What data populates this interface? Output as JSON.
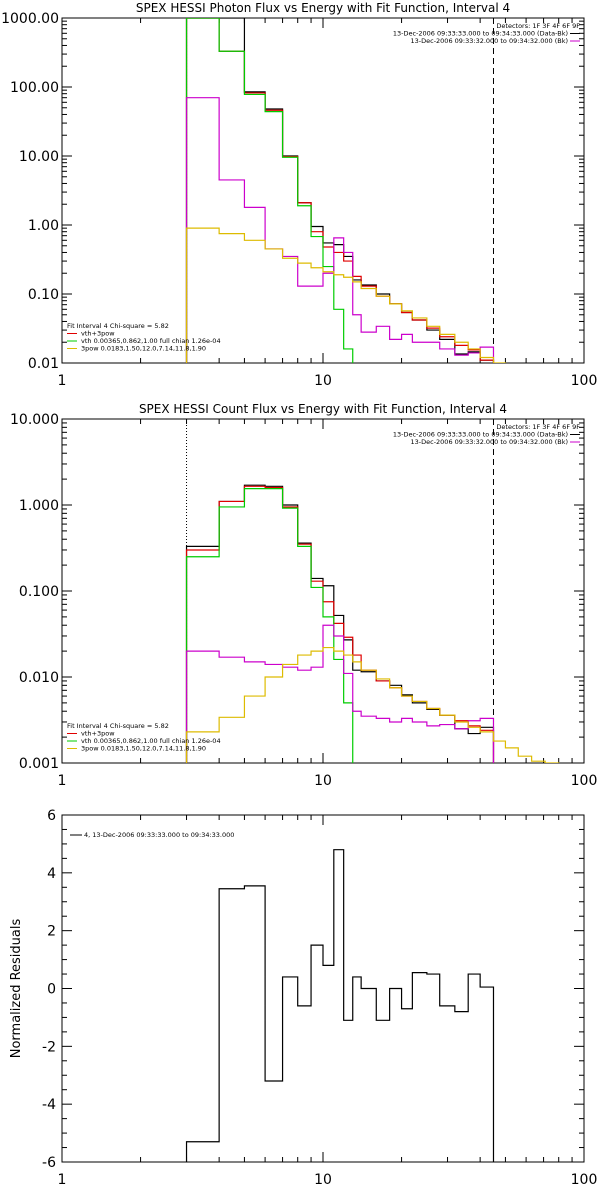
{
  "chart_data": [
    {
      "type": "line",
      "title": "SPEX HESSI Photon Flux vs Energy with Fit Function, Interval 4",
      "x_scale": "log",
      "y_scale": "log",
      "xlim": [
        1,
        100
      ],
      "ylim": [
        0.01,
        1000
      ],
      "x_ticks": [
        "1",
        "10",
        "100"
      ],
      "y_ticks": [
        "0.01",
        "0.10",
        "1.00",
        "10.00",
        "100.00",
        "1000.00"
      ],
      "info_lines": [
        {
          "text": "Detectors: 1F 3F 4F 6F 9F",
          "swatch": ""
        },
        {
          "text": "13-Dec-2006 09:33:33.000 to 09:34:33.000 (Data-Bk)",
          "swatch": "#000000"
        },
        {
          "text": "13-Dec-2006 09:33:32.000 to 09:34:32.000 (Bk)",
          "swatch": "#cc00cc"
        }
      ],
      "legend_lines": [
        {
          "text": "Fit Interval 4   Chi-square = 5.82",
          "swatch": ""
        },
        {
          "text": "vth+3pow",
          "swatch": "#e00000"
        },
        {
          "text": "vth 0.00365,0.862,1.00   full chian 1.26e-04",
          "swatch": "#00cc00"
        },
        {
          "text": "3pow 0.0183,1.50,12.0,7.14,11.8,1.90",
          "swatch": "#ddbb00"
        }
      ],
      "markers": {
        "dotted_x": 3.0,
        "dashed_x": 45.0
      },
      "series": [
        {
          "color": "#000000",
          "edges": [
            3,
            4,
            5,
            6,
            7,
            8,
            9,
            10,
            11,
            12,
            13,
            14,
            16,
            18,
            20,
            22,
            25,
            28,
            32,
            36,
            40,
            45
          ],
          "values": [
            1000,
            1000,
            85,
            48,
            10,
            2.1,
            0.95,
            0.55,
            0.52,
            0.35,
            0.16,
            0.135,
            0.1,
            0.072,
            0.054,
            0.042,
            0.03,
            0.022,
            0.0135,
            0.0145,
            0.011
          ]
        },
        {
          "color": "#e00000",
          "edges": [
            3,
            4,
            5,
            6,
            7,
            8,
            9,
            10,
            11,
            12,
            13,
            14,
            16,
            18,
            20,
            22,
            25,
            28,
            32,
            36,
            40,
            45
          ],
          "values": [
            1000,
            330,
            82,
            46,
            9.8,
            2.1,
            0.8,
            0.48,
            0.4,
            0.3,
            0.18,
            0.13,
            0.093,
            0.072,
            0.054,
            0.042,
            0.032,
            0.024,
            0.018,
            0.0155,
            0.011
          ]
        },
        {
          "color": "#00cc00",
          "edges": [
            3,
            4,
            5,
            6,
            7,
            8,
            9,
            10,
            11,
            12,
            13
          ],
          "values": [
            1000,
            330,
            78,
            44,
            9.6,
            1.9,
            0.68,
            0.25,
            0.06,
            0.016
          ]
        },
        {
          "color": "#cc00cc",
          "edges": [
            3,
            4,
            5,
            6,
            7,
            8,
            9,
            10,
            11,
            12,
            13,
            14,
            16,
            18,
            20,
            22,
            25,
            28,
            32,
            36,
            40,
            45
          ],
          "values": [
            70,
            4.5,
            1.8,
            0.45,
            0.35,
            0.13,
            0.13,
            0.2,
            0.65,
            0.4,
            0.05,
            0.028,
            0.034,
            0.022,
            0.026,
            0.02,
            0.02,
            0.016,
            0.013,
            0.014,
            0.017
          ]
        },
        {
          "color": "#ddbb00",
          "edges": [
            3,
            4,
            5,
            6,
            7,
            8,
            9,
            10,
            11,
            12,
            13,
            14,
            16,
            18,
            20,
            22,
            25,
            28,
            32,
            36,
            40,
            45,
            50
          ],
          "values": [
            0.9,
            0.75,
            0.6,
            0.45,
            0.33,
            0.28,
            0.24,
            0.21,
            0.19,
            0.175,
            0.15,
            0.12,
            0.093,
            0.072,
            0.057,
            0.045,
            0.034,
            0.026,
            0.02,
            0.016,
            0.012,
            0.009
          ]
        }
      ]
    },
    {
      "type": "line",
      "title": "SPEX HESSI Count Flux vs Energy with Fit Function, Interval 4",
      "x_scale": "log",
      "y_scale": "log",
      "xlim": [
        1,
        100
      ],
      "ylim": [
        0.001,
        10
      ],
      "x_ticks": [
        "1",
        "10",
        "100"
      ],
      "y_ticks": [
        "0.001",
        "0.010",
        "0.100",
        "1.000",
        "10.000"
      ],
      "info_lines": [
        {
          "text": "Detectors: 1F 3F 4F 6F 9F",
          "swatch": ""
        },
        {
          "text": "13-Dec-2006 09:33:33.000 to 09:34:33.000 (Data-Bk)",
          "swatch": "#000000"
        },
        {
          "text": "13-Dec-2006 09:33:32.000 to 09:34:32.000 (Bk)",
          "swatch": "#cc00cc"
        }
      ],
      "legend_lines": [
        {
          "text": "Fit Interval 4   Chi-square = 5.82",
          "swatch": ""
        },
        {
          "text": "vth+3pow",
          "swatch": "#e00000"
        },
        {
          "text": "vth 0.00365,0.862,1.00   full chian 1.26e-04",
          "swatch": "#00cc00"
        },
        {
          "text": "3pow 0.0183,1.50,12.0,7.14,11.8,1.90",
          "swatch": "#ddbb00"
        }
      ],
      "markers": {
        "dotted_x": 3.0,
        "dashed_x": 45.0
      },
      "series": [
        {
          "color": "#000000",
          "edges": [
            3,
            4,
            5,
            6,
            7,
            8,
            9,
            10,
            11,
            12,
            13,
            14,
            16,
            18,
            20,
            22,
            25,
            28,
            32,
            36,
            40,
            45
          ],
          "values": [
            0.33,
            1.1,
            1.7,
            1.65,
            1.0,
            0.36,
            0.14,
            0.115,
            0.052,
            0.027,
            0.012,
            0.0115,
            0.009,
            0.008,
            0.0062,
            0.005,
            0.0042,
            0.0036,
            0.0025,
            0.0022,
            0.0026
          ]
        },
        {
          "color": "#e00000",
          "edges": [
            3,
            4,
            5,
            6,
            7,
            8,
            9,
            10,
            11,
            12,
            13,
            14,
            16,
            18,
            20,
            22,
            25,
            28,
            32,
            36,
            40,
            45
          ],
          "values": [
            0.3,
            1.1,
            1.65,
            1.6,
            0.95,
            0.35,
            0.13,
            0.075,
            0.042,
            0.029,
            0.018,
            0.012,
            0.009,
            0.0075,
            0.006,
            0.0052,
            0.0043,
            0.0036,
            0.0031,
            0.0027,
            0.0024
          ]
        },
        {
          "color": "#00cc00",
          "edges": [
            3,
            4,
            5,
            6,
            7,
            8,
            9,
            10,
            11,
            12,
            13
          ],
          "values": [
            0.25,
            0.95,
            1.55,
            1.55,
            0.92,
            0.33,
            0.11,
            0.05,
            0.016,
            0.005
          ]
        },
        {
          "color": "#cc00cc",
          "edges": [
            3,
            4,
            5,
            6,
            7,
            8,
            9,
            10,
            11,
            12,
            13,
            14,
            16,
            18,
            20,
            22,
            25,
            28,
            32,
            36,
            40,
            45
          ],
          "values": [
            0.02,
            0.017,
            0.015,
            0.014,
            0.013,
            0.012,
            0.013,
            0.04,
            0.03,
            0.011,
            0.004,
            0.0035,
            0.0033,
            0.003,
            0.0033,
            0.003,
            0.0027,
            0.0028,
            0.0025,
            0.0031,
            0.0033
          ]
        },
        {
          "color": "#ddbb00",
          "edges": [
            3,
            4,
            5,
            6,
            7,
            8,
            9,
            10,
            11,
            12,
            13,
            14,
            16,
            18,
            20,
            22,
            25,
            28,
            32,
            36,
            40,
            45,
            50,
            56,
            63,
            71,
            80
          ],
          "values": [
            0.0023,
            0.0034,
            0.006,
            0.01,
            0.014,
            0.018,
            0.02,
            0.022,
            0.02,
            0.018,
            0.015,
            0.012,
            0.0095,
            0.0075,
            0.006,
            0.0052,
            0.0043,
            0.0036,
            0.003,
            0.0026,
            0.0023,
            0.0018,
            0.0015,
            0.0012,
            0.00105,
            0.001
          ]
        }
      ]
    },
    {
      "type": "line",
      "title": "",
      "x_scale": "log",
      "y_scale": "linear",
      "xlim": [
        1,
        100
      ],
      "ylim": [
        -6,
        6
      ],
      "x_ticks": [
        "1",
        "10",
        "100"
      ],
      "y_ticks": [
        "-6",
        "-4",
        "-2",
        "0",
        "2",
        "4",
        "6"
      ],
      "ylabel": "Normalized Residuals",
      "info_lines": [
        {
          "text": "4, 13-Dec-2006 09:33:33.000 to 09:34:33.000",
          "swatch": "#000000"
        }
      ],
      "legend_lines": [],
      "markers": {},
      "series": [
        {
          "color": "#000000",
          "edges": [
            3,
            4,
            5,
            6,
            7,
            8,
            9,
            10,
            11,
            12,
            13,
            14,
            16,
            18,
            20,
            22,
            25,
            28,
            32,
            36,
            40,
            45
          ],
          "values": [
            -5.3,
            3.45,
            3.55,
            -3.2,
            0.4,
            -0.6,
            1.5,
            0.8,
            4.8,
            -1.1,
            0.4,
            0.0,
            -1.1,
            0.0,
            -0.7,
            0.55,
            0.5,
            -0.6,
            -0.8,
            0.5,
            0.05
          ],
          "drop_to": -6
        }
      ]
    }
  ]
}
